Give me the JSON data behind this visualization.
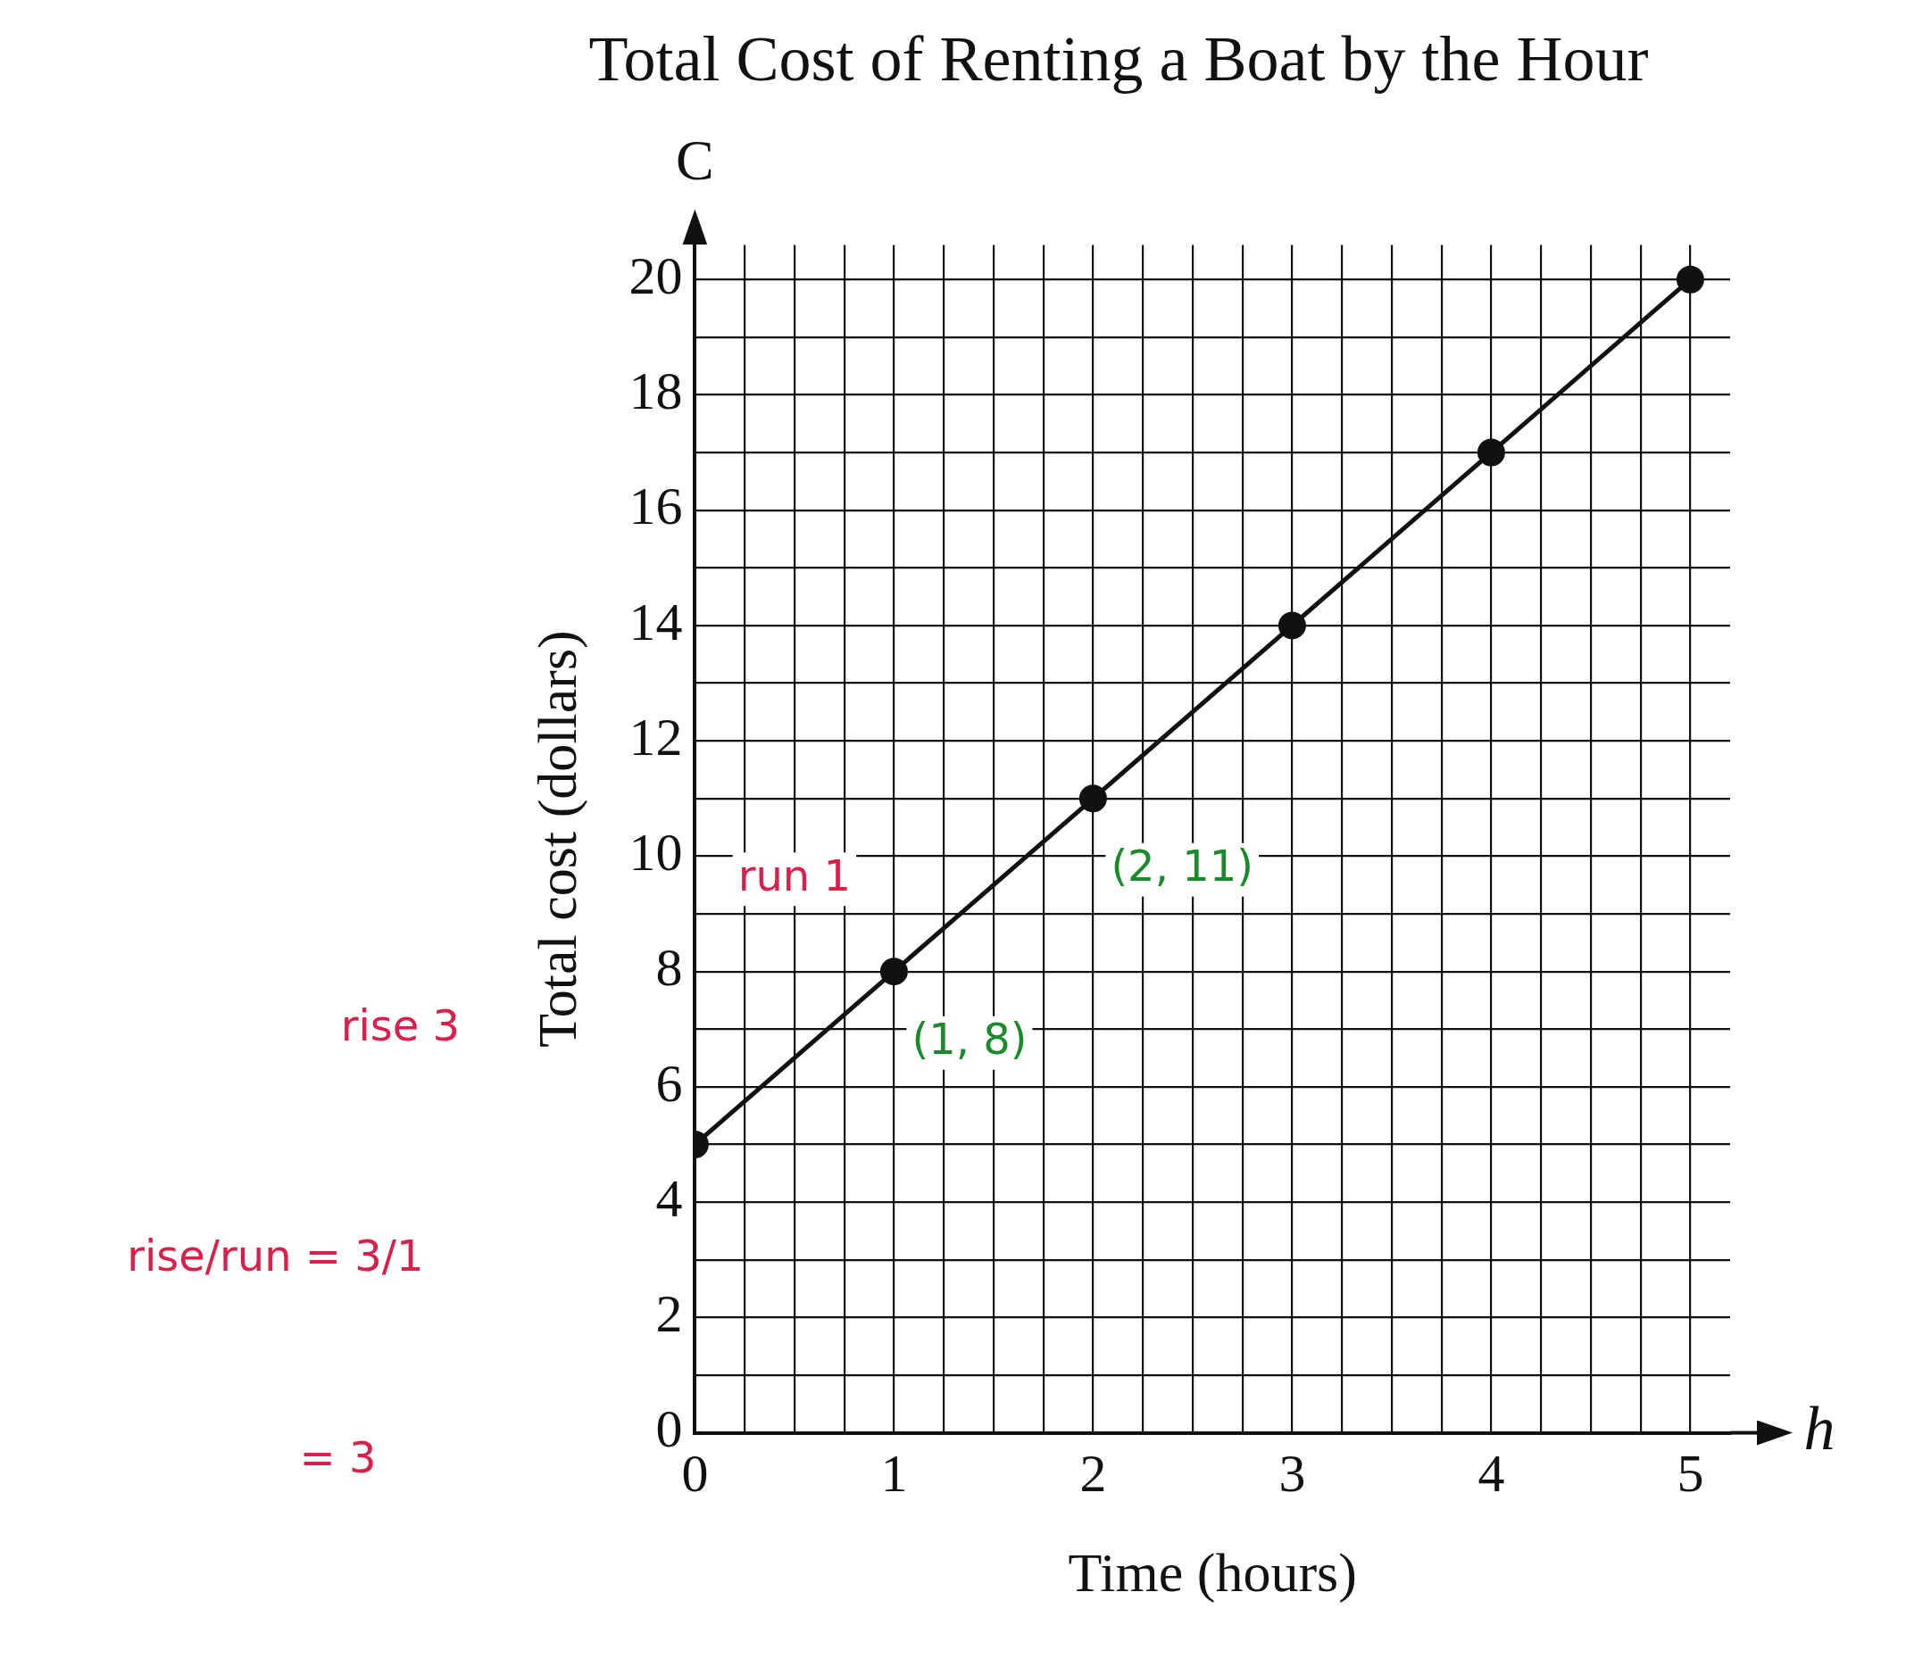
{
  "chart_data": {
    "type": "line",
    "title": "Total Cost of Renting a Boat by the Hour",
    "xlabel": "Time (hours)",
    "ylabel": "Total cost (dollars)",
    "x": [
      0,
      1,
      2,
      3,
      4,
      5
    ],
    "series": [
      {
        "color": "#111111",
        "values": [
          5,
          8,
          11,
          14,
          17,
          20
        ]
      }
    ],
    "xlim": [
      0,
      5.2
    ],
    "ylim": [
      0,
      20.6
    ],
    "xticks": [
      0,
      {
        "value": 0.25,
        "label": null
      },
      {
        "value": 0.5,
        "label": null
      },
      {
        "value": 0.75,
        "label": null
      },
      1,
      {
        "value": 1.25,
        "label": null
      },
      {
        "value": 1.5,
        "label": null
      },
      {
        "value": 1.75,
        "label": null
      },
      2,
      {
        "value": 2.25,
        "label": null
      },
      {
        "value": 2.5,
        "label": null
      },
      {
        "value": 2.75,
        "label": null
      },
      3,
      {
        "value": 3.25,
        "label": null
      },
      {
        "value": 3.5,
        "label": null
      },
      {
        "value": 3.75,
        "label": null
      },
      4,
      {
        "value": 4.25,
        "label": null
      },
      {
        "value": 4.5,
        "label": null
      },
      {
        "value": 4.75,
        "label": null
      },
      5
    ],
    "yticks": [
      0,
      {
        "value": 1,
        "label": null
      },
      2,
      {
        "value": 3,
        "label": null
      },
      4,
      {
        "value": 5,
        "label": null
      },
      6,
      {
        "value": 7,
        "label": null
      },
      8,
      {
        "value": 9,
        "label": null
      },
      10,
      {
        "value": 11,
        "label": null
      },
      12,
      {
        "value": 13,
        "label": null
      },
      14,
      {
        "value": 15,
        "label": null
      },
      16,
      {
        "value": 17,
        "label": null
      },
      18,
      {
        "value": 19,
        "label": null
      },
      20
    ],
    "grid": true,
    "legend": false,
    "marker": "circle",
    "line_style": "solid",
    "annotations": [
      "C",
      "h",
      "run 1",
      "rise 3",
      "rise/run = 3/1",
      "= 3",
      {
        "text": "(1, 8)",
        "x": 1,
        "y": 8
      },
      {
        "text": "(2, 11)",
        "x": 2,
        "y": 11
      }
    ]
  }
}
